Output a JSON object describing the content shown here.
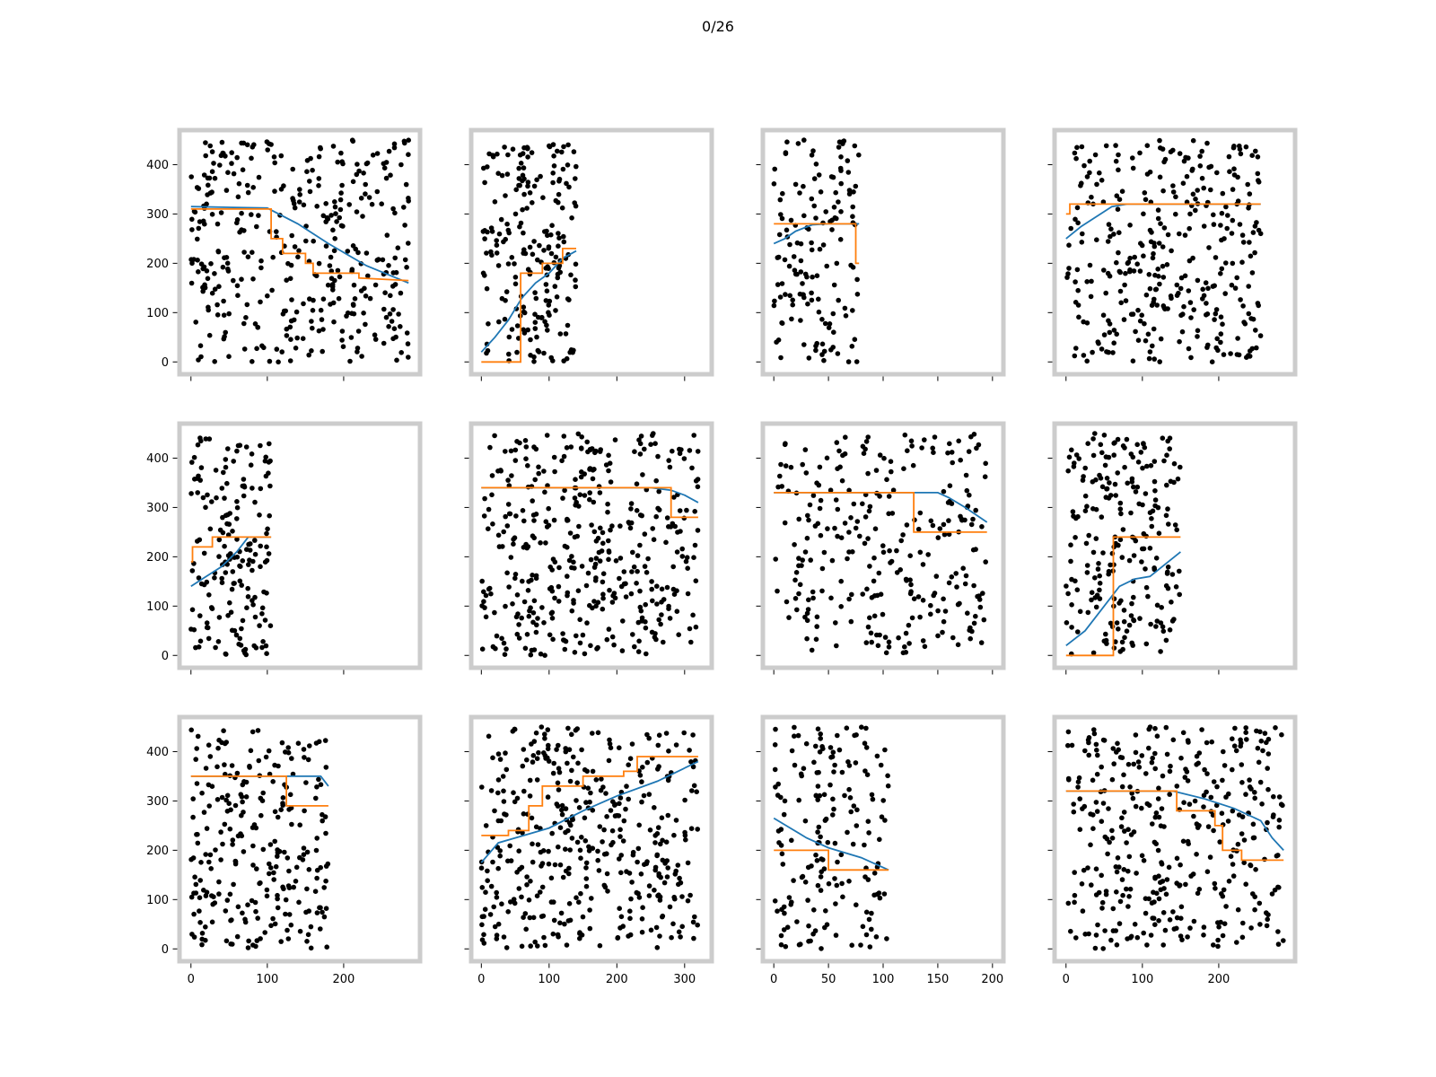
{
  "figure": {
    "title": "0/26",
    "colors": {
      "points": "#000000",
      "smooth_line": "#1f77b4",
      "step_line": "#ff7f0e",
      "frame": "#cccccc"
    }
  },
  "chart_data": [
    {
      "type": "scatter",
      "xlim": [
        -15,
        300
      ],
      "ylim": [
        -25,
        470
      ],
      "xticks": [
        0,
        100,
        200
      ],
      "yticks": [
        0,
        100,
        200,
        300,
        400
      ],
      "show_xtick_labels": false,
      "show_ytick_labels": true,
      "x_max_data": 285,
      "smooth": [
        [
          0,
          315
        ],
        [
          100,
          312
        ],
        [
          140,
          280
        ],
        [
          180,
          240
        ],
        [
          230,
          195
        ],
        [
          285,
          160
        ]
      ],
      "step": [
        [
          0,
          310
        ],
        [
          105,
          310
        ],
        [
          105,
          250
        ],
        [
          120,
          250
        ],
        [
          120,
          220
        ],
        [
          150,
          220
        ],
        [
          150,
          200
        ],
        [
          160,
          200
        ],
        [
          160,
          180
        ],
        [
          220,
          180
        ],
        [
          220,
          170
        ],
        [
          285,
          165
        ]
      ]
    },
    {
      "type": "scatter",
      "xlim": [
        -15,
        340
      ],
      "ylim": [
        -25,
        470
      ],
      "xticks": [
        0,
        100,
        200,
        300
      ],
      "yticks": [
        0,
        100,
        200,
        300,
        400
      ],
      "show_xtick_labels": false,
      "show_ytick_labels": false,
      "x_max_data": 140,
      "smooth": [
        [
          0,
          20
        ],
        [
          20,
          50
        ],
        [
          40,
          85
        ],
        [
          60,
          130
        ],
        [
          80,
          160
        ],
        [
          100,
          180
        ],
        [
          120,
          210
        ],
        [
          140,
          225
        ]
      ],
      "step": [
        [
          0,
          0
        ],
        [
          58,
          0
        ],
        [
          58,
          180
        ],
        [
          90,
          180
        ],
        [
          90,
          200
        ],
        [
          120,
          200
        ],
        [
          120,
          230
        ],
        [
          140,
          230
        ]
      ]
    },
    {
      "type": "scatter",
      "xlim": [
        -10,
        210
      ],
      "ylim": [
        -25,
        470
      ],
      "xticks": [
        0,
        50,
        100,
        150,
        200
      ],
      "yticks": [
        0,
        100,
        200,
        300,
        400
      ],
      "show_xtick_labels": false,
      "show_ytick_labels": false,
      "x_max_data": 78,
      "smooth": [
        [
          0,
          240
        ],
        [
          10,
          250
        ],
        [
          20,
          265
        ],
        [
          35,
          278
        ],
        [
          50,
          280
        ],
        [
          78,
          280
        ]
      ],
      "step": [
        [
          0,
          280
        ],
        [
          75,
          280
        ],
        [
          75,
          200
        ],
        [
          78,
          200
        ]
      ]
    },
    {
      "type": "scatter",
      "xlim": [
        -15,
        300
      ],
      "ylim": [
        -25,
        470
      ],
      "xticks": [
        0,
        100,
        200
      ],
      "yticks": [
        0,
        100,
        200,
        300,
        400
      ],
      "show_xtick_labels": false,
      "show_ytick_labels": false,
      "x_max_data": 255,
      "smooth": [
        [
          0,
          250
        ],
        [
          20,
          275
        ],
        [
          40,
          295
        ],
        [
          60,
          315
        ],
        [
          80,
          320
        ],
        [
          255,
          320
        ]
      ],
      "step": [
        [
          0,
          300
        ],
        [
          5,
          300
        ],
        [
          5,
          320
        ],
        [
          255,
          320
        ]
      ]
    },
    {
      "type": "scatter",
      "xlim": [
        -15,
        300
      ],
      "ylim": [
        -25,
        470
      ],
      "xticks": [
        0,
        100,
        200
      ],
      "yticks": [
        0,
        100,
        200,
        300,
        400
      ],
      "show_xtick_labels": false,
      "show_ytick_labels": true,
      "x_max_data": 105,
      "smooth": [
        [
          0,
          140
        ],
        [
          20,
          160
        ],
        [
          40,
          180
        ],
        [
          60,
          210
        ],
        [
          75,
          240
        ],
        [
          105,
          240
        ]
      ],
      "step": [
        [
          0,
          190
        ],
        [
          2,
          190
        ],
        [
          2,
          220
        ],
        [
          28,
          220
        ],
        [
          28,
          240
        ],
        [
          105,
          240
        ]
      ]
    },
    {
      "type": "scatter",
      "xlim": [
        -15,
        340
      ],
      "ylim": [
        -25,
        470
      ],
      "xticks": [
        0,
        100,
        200,
        300
      ],
      "yticks": [
        0,
        100,
        200,
        300,
        400
      ],
      "show_xtick_labels": false,
      "show_ytick_labels": false,
      "x_max_data": 320,
      "smooth": [
        [
          0,
          340
        ],
        [
          250,
          340
        ],
        [
          280,
          335
        ],
        [
          300,
          325
        ],
        [
          320,
          310
        ]
      ],
      "step": [
        [
          0,
          340
        ],
        [
          280,
          340
        ],
        [
          280,
          280
        ],
        [
          320,
          280
        ]
      ]
    },
    {
      "type": "scatter",
      "xlim": [
        -10,
        210
      ],
      "ylim": [
        -25,
        470
      ],
      "xticks": [
        0,
        50,
        100,
        150,
        200
      ],
      "yticks": [
        0,
        100,
        200,
        300,
        400
      ],
      "show_xtick_labels": false,
      "show_ytick_labels": false,
      "x_max_data": 195,
      "smooth": [
        [
          0,
          330
        ],
        [
          150,
          330
        ],
        [
          160,
          320
        ],
        [
          175,
          300
        ],
        [
          195,
          270
        ]
      ],
      "step": [
        [
          0,
          330
        ],
        [
          128,
          330
        ],
        [
          128,
          250
        ],
        [
          195,
          250
        ]
      ]
    },
    {
      "type": "scatter",
      "xlim": [
        -15,
        300
      ],
      "ylim": [
        -25,
        470
      ],
      "xticks": [
        0,
        100,
        200
      ],
      "yticks": [
        0,
        100,
        200,
        300,
        400
      ],
      "show_xtick_labels": false,
      "show_ytick_labels": false,
      "x_max_data": 150,
      "smooth": [
        [
          0,
          20
        ],
        [
          25,
          50
        ],
        [
          50,
          100
        ],
        [
          70,
          140
        ],
        [
          90,
          155
        ],
        [
          110,
          160
        ],
        [
          130,
          185
        ],
        [
          150,
          210
        ]
      ],
      "step": [
        [
          0,
          0
        ],
        [
          62,
          0
        ],
        [
          62,
          240
        ],
        [
          150,
          240
        ]
      ]
    },
    {
      "type": "scatter",
      "xlim": [
        -15,
        300
      ],
      "ylim": [
        -25,
        470
      ],
      "xticks": [
        0,
        100,
        200
      ],
      "yticks": [
        0,
        100,
        200,
        300,
        400
      ],
      "show_xtick_labels": true,
      "show_ytick_labels": true,
      "x_max_data": 180,
      "smooth": [
        [
          0,
          350
        ],
        [
          150,
          350
        ],
        [
          170,
          350
        ],
        [
          180,
          330
        ]
      ],
      "step": [
        [
          0,
          350
        ],
        [
          125,
          350
        ],
        [
          125,
          290
        ],
        [
          180,
          290
        ]
      ]
    },
    {
      "type": "scatter",
      "xlim": [
        -15,
        340
      ],
      "ylim": [
        -25,
        470
      ],
      "xticks": [
        0,
        100,
        200,
        300
      ],
      "yticks": [
        0,
        100,
        200,
        300,
        400
      ],
      "show_xtick_labels": true,
      "show_ytick_labels": false,
      "x_max_data": 320,
      "smooth": [
        [
          0,
          175
        ],
        [
          25,
          215
        ],
        [
          50,
          225
        ],
        [
          100,
          245
        ],
        [
          150,
          280
        ],
        [
          200,
          310
        ],
        [
          260,
          340
        ],
        [
          320,
          380
        ]
      ],
      "step": [
        [
          0,
          230
        ],
        [
          40,
          230
        ],
        [
          40,
          240
        ],
        [
          70,
          240
        ],
        [
          70,
          290
        ],
        [
          90,
          290
        ],
        [
          90,
          330
        ],
        [
          150,
          330
        ],
        [
          150,
          350
        ],
        [
          210,
          350
        ],
        [
          210,
          360
        ],
        [
          230,
          360
        ],
        [
          230,
          390
        ],
        [
          320,
          390
        ]
      ]
    },
    {
      "type": "scatter",
      "xlim": [
        -10,
        210
      ],
      "ylim": [
        -25,
        470
      ],
      "xticks": [
        0,
        50,
        100,
        150,
        200
      ],
      "yticks": [
        0,
        100,
        200,
        300,
        400
      ],
      "show_xtick_labels": true,
      "show_ytick_labels": false,
      "x_max_data": 105,
      "smooth": [
        [
          0,
          265
        ],
        [
          15,
          245
        ],
        [
          30,
          225
        ],
        [
          50,
          205
        ],
        [
          80,
          185
        ],
        [
          105,
          160
        ]
      ],
      "step": [
        [
          0,
          200
        ],
        [
          50,
          200
        ],
        [
          50,
          160
        ],
        [
          105,
          160
        ]
      ]
    },
    {
      "type": "scatter",
      "xlim": [
        -15,
        300
      ],
      "ylim": [
        -25,
        470
      ],
      "xticks": [
        0,
        100,
        200
      ],
      "yticks": [
        0,
        100,
        200,
        300,
        400
      ],
      "show_xtick_labels": true,
      "show_ytick_labels": false,
      "x_max_data": 285,
      "smooth": [
        [
          0,
          320
        ],
        [
          140,
          320
        ],
        [
          180,
          305
        ],
        [
          220,
          285
        ],
        [
          255,
          260
        ],
        [
          270,
          225
        ],
        [
          285,
          200
        ]
      ],
      "step": [
        [
          0,
          320
        ],
        [
          145,
          320
        ],
        [
          145,
          280
        ],
        [
          195,
          280
        ],
        [
          195,
          250
        ],
        [
          205,
          250
        ],
        [
          205,
          200
        ],
        [
          230,
          200
        ],
        [
          230,
          180
        ],
        [
          285,
          180
        ]
      ]
    }
  ]
}
